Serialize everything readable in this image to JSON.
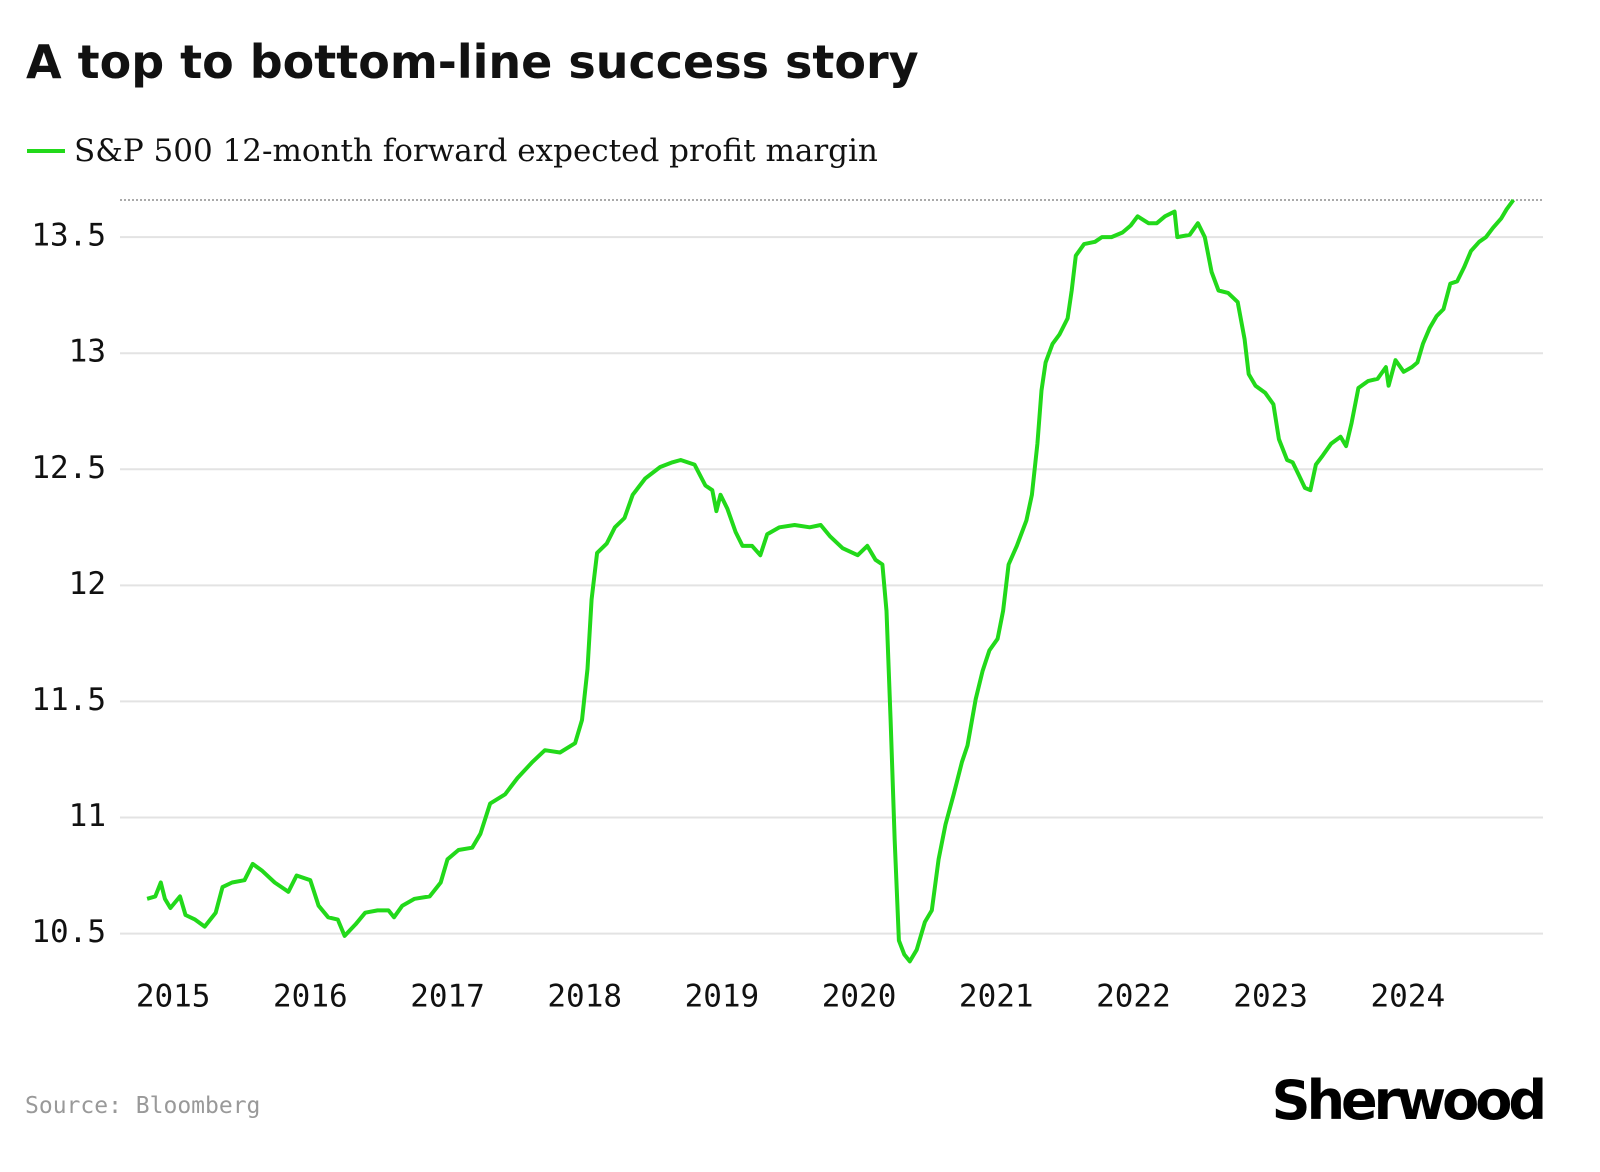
{
  "chart_data": {
    "type": "line",
    "title": "A top to bottom-line success story",
    "source": "Source: Bloomberg",
    "brand": "Sherwood",
    "xlim": [
      2014.7,
      2025.0
    ],
    "xticks": [
      2015,
      2016,
      2017,
      2018,
      2019,
      2020,
      2021,
      2022,
      2023,
      2024
    ],
    "ylim": [
      10.3,
      13.66
    ],
    "yticks": [
      10.5,
      11,
      11.5,
      12,
      12.5,
      13,
      13.5
    ],
    "grid": true,
    "series": [
      {
        "name": "S&P 500 12-month forward expected profit margin",
        "color": "#22d91a",
        "x": [
          2014.81,
          2014.87,
          2014.91,
          2014.94,
          2014.98,
          2015.05,
          2015.09,
          2015.16,
          2015.23,
          2015.31,
          2015.36,
          2015.43,
          2015.52,
          2015.58,
          2015.65,
          2015.74,
          2015.84,
          2015.9,
          2016.0,
          2016.06,
          2016.13,
          2016.2,
          2016.25,
          2016.33,
          2016.4,
          2016.49,
          2016.57,
          2016.61,
          2016.67,
          2016.76,
          2016.87,
          2016.95,
          2017.0,
          2017.08,
          2017.18,
          2017.24,
          2017.31,
          2017.42,
          2017.51,
          2017.62,
          2017.71,
          2017.82,
          2017.93,
          2017.98,
          2018.02,
          2018.05,
          2018.09,
          2018.16,
          2018.22,
          2018.29,
          2018.35,
          2018.44,
          2018.55,
          2018.64,
          2018.7,
          2018.8,
          2018.88,
          2018.93,
          2018.96,
          2018.99,
          2019.04,
          2019.1,
          2019.15,
          2019.22,
          2019.28,
          2019.33,
          2019.42,
          2019.53,
          2019.64,
          2019.72,
          2019.79,
          2019.88,
          2019.99,
          2020.06,
          2020.12,
          2020.17,
          2020.2,
          2020.23,
          2020.26,
          2020.29,
          2020.33,
          2020.37,
          2020.42,
          2020.48,
          2020.53,
          2020.58,
          2020.63,
          2020.69,
          2020.75,
          2020.79,
          2020.85,
          2020.9,
          2020.95,
          2021.01,
          2021.05,
          2021.09,
          2021.15,
          2021.22,
          2021.26,
          2021.3,
          2021.33,
          2021.36,
          2021.41,
          2021.46,
          2021.52,
          2021.55,
          2021.58,
          2021.64,
          2021.72,
          2021.77,
          2021.84,
          2021.92,
          2021.98,
          2022.03,
          2022.11,
          2022.17,
          2022.23,
          2022.3,
          2022.32,
          2022.41,
          2022.47,
          2022.52,
          2022.57,
          2022.62,
          2022.69,
          2022.76,
          2022.81,
          2022.84,
          2022.89,
          2022.96,
          2023.02,
          2023.06,
          2023.12,
          2023.16,
          2023.21,
          2023.25,
          2023.29,
          2023.33,
          2023.38,
          2023.44,
          2023.51,
          2023.55,
          2023.59,
          2023.64,
          2023.71,
          2023.78,
          2023.84,
          2023.86,
          2023.91,
          2023.97,
          2024.03,
          2024.07,
          2024.11,
          2024.16,
          2024.21,
          2024.26,
          2024.31,
          2024.36,
          2024.41,
          2024.46,
          2024.52,
          2024.57,
          2024.62,
          2024.68,
          2024.72,
          2024.77
        ],
        "values": [
          10.65,
          10.66,
          10.72,
          10.65,
          10.61,
          10.66,
          10.58,
          10.56,
          10.53,
          10.59,
          10.7,
          10.72,
          10.73,
          10.8,
          10.77,
          10.72,
          10.68,
          10.75,
          10.73,
          10.62,
          10.57,
          10.56,
          10.49,
          10.54,
          10.59,
          10.6,
          10.6,
          10.57,
          10.62,
          10.65,
          10.66,
          10.72,
          10.82,
          10.86,
          10.87,
          10.93,
          11.06,
          11.1,
          11.17,
          11.24,
          11.29,
          11.28,
          11.32,
          11.42,
          11.64,
          11.94,
          12.14,
          12.18,
          12.25,
          12.29,
          12.39,
          12.46,
          12.51,
          12.53,
          12.54,
          12.52,
          12.43,
          12.41,
          12.32,
          12.39,
          12.33,
          12.23,
          12.17,
          12.17,
          12.13,
          12.22,
          12.25,
          12.26,
          12.25,
          12.26,
          12.21,
          12.16,
          12.13,
          12.17,
          12.11,
          12.09,
          11.89,
          11.42,
          10.9,
          10.47,
          10.41,
          10.38,
          10.43,
          10.55,
          10.6,
          10.82,
          10.97,
          11.1,
          11.24,
          11.31,
          11.51,
          11.63,
          11.72,
          11.77,
          11.89,
          12.09,
          12.17,
          12.28,
          12.39,
          12.61,
          12.84,
          12.96,
          13.04,
          13.08,
          13.15,
          13.27,
          13.42,
          13.47,
          13.48,
          13.5,
          13.5,
          13.52,
          13.55,
          13.59,
          13.56,
          13.56,
          13.59,
          13.61,
          13.5,
          13.51,
          13.56,
          13.5,
          13.35,
          13.27,
          13.26,
          13.22,
          13.06,
          12.91,
          12.86,
          12.83,
          12.78,
          12.63,
          12.54,
          12.53,
          12.47,
          12.42,
          12.41,
          12.52,
          12.56,
          12.61,
          12.64,
          12.6,
          12.7,
          12.85,
          12.88,
          12.89,
          12.94,
          12.86,
          12.97,
          12.92,
          12.94,
          12.96,
          13.04,
          13.11,
          13.16,
          13.19,
          13.3,
          13.31,
          13.37,
          13.44,
          13.48,
          13.5,
          13.54,
          13.58,
          13.62,
          13.66
        ]
      }
    ]
  }
}
